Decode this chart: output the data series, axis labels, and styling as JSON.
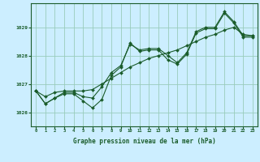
{
  "title": "Graphe pression niveau de la mer (hPa)",
  "bg_color": "#cceeff",
  "grid_color": "#99ccbb",
  "line_color": "#1a5c2a",
  "marker_color": "#1a5c2a",
  "xlim": [
    -0.5,
    23.5
  ],
  "ylim": [
    1025.5,
    1029.85
  ],
  "yticks": [
    1026,
    1027,
    1028,
    1029
  ],
  "xticks": [
    0,
    1,
    2,
    3,
    4,
    5,
    6,
    7,
    8,
    9,
    10,
    11,
    12,
    13,
    14,
    15,
    16,
    17,
    18,
    19,
    20,
    21,
    22,
    23
  ],
  "series1_x": [
    0,
    1,
    2,
    3,
    4,
    5,
    6,
    7,
    8,
    9,
    10,
    11,
    12,
    13,
    14,
    15,
    16,
    17,
    18,
    19,
    20,
    21,
    22,
    23
  ],
  "series1_y": [
    1026.75,
    1026.3,
    1026.5,
    1026.65,
    1026.65,
    1026.4,
    1026.15,
    1026.45,
    1027.3,
    1027.6,
    1028.45,
    1028.15,
    1028.2,
    1028.2,
    1027.85,
    1027.7,
    1028.05,
    1028.8,
    1028.95,
    1028.95,
    1029.5,
    1029.15,
    1028.65,
    1028.65
  ],
  "series2_x": [
    0,
    1,
    2,
    3,
    4,
    5,
    6,
    7,
    8,
    9,
    10,
    11,
    12,
    13,
    14,
    15,
    16,
    17,
    18,
    19,
    20,
    21,
    22,
    23
  ],
  "series2_y": [
    1026.75,
    1026.3,
    1026.5,
    1026.7,
    1026.7,
    1026.55,
    1026.5,
    1026.9,
    1027.4,
    1027.65,
    1028.4,
    1028.2,
    1028.25,
    1028.25,
    1028.0,
    1027.75,
    1028.1,
    1028.85,
    1029.0,
    1029.0,
    1029.55,
    1029.2,
    1028.7,
    1028.7
  ],
  "series3_x": [
    0,
    1,
    2,
    3,
    4,
    5,
    6,
    7,
    8,
    9,
    10,
    11,
    12,
    13,
    14,
    15,
    16,
    17,
    18,
    19,
    20,
    21,
    22,
    23
  ],
  "series3_y": [
    1026.75,
    1026.55,
    1026.7,
    1026.75,
    1026.75,
    1026.75,
    1026.8,
    1027.0,
    1027.2,
    1027.4,
    1027.6,
    1027.75,
    1027.9,
    1028.0,
    1028.1,
    1028.2,
    1028.35,
    1028.5,
    1028.65,
    1028.75,
    1028.9,
    1029.0,
    1028.75,
    1028.7
  ]
}
